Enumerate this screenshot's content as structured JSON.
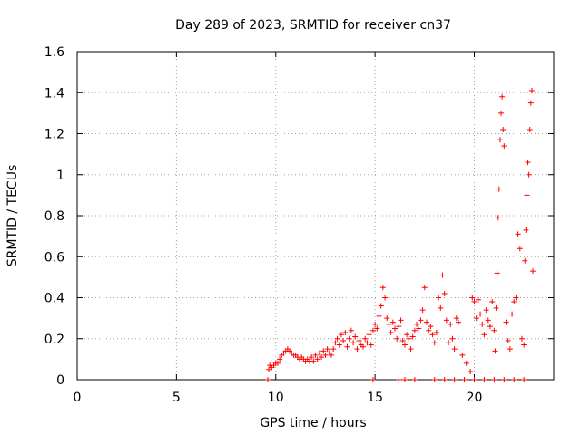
{
  "chart_data": {
    "type": "scatter",
    "title": "Day 289 of 2023, SRMTID for receiver cn37",
    "xlabel": "GPS time / hours",
    "ylabel": "SRMTID / TECUs",
    "xlim": [
      0,
      24
    ],
    "ylim": [
      0,
      1.6
    ],
    "grid": true,
    "marker": "+",
    "color": "#ff0000",
    "x_ticks": [
      0,
      5,
      10,
      15,
      20
    ],
    "x_tick_labels": [
      "0",
      "5",
      "10",
      "15",
      "20"
    ],
    "y_ticks": [
      0,
      0.2,
      0.4,
      0.6,
      0.8,
      1.0,
      1.2,
      1.4,
      1.6
    ],
    "y_tick_labels": [
      "0",
      "0.2",
      "0.4",
      "0.6",
      "0.8",
      "1",
      "1.2",
      "1.4",
      "1.6"
    ],
    "series": [
      {
        "name": "cn37",
        "points": [
          [
            9.6,
            0.0
          ],
          [
            9.65,
            0.05
          ],
          [
            9.7,
            0.07
          ],
          [
            9.8,
            0.06
          ],
          [
            9.9,
            0.07
          ],
          [
            10.0,
            0.08
          ],
          [
            10.1,
            0.08
          ],
          [
            10.2,
            0.1
          ],
          [
            10.3,
            0.12
          ],
          [
            10.4,
            0.13
          ],
          [
            10.5,
            0.14
          ],
          [
            10.6,
            0.15
          ],
          [
            10.7,
            0.14
          ],
          [
            10.8,
            0.13
          ],
          [
            10.9,
            0.12
          ],
          [
            11.0,
            0.12
          ],
          [
            11.1,
            0.11
          ],
          [
            11.2,
            0.1
          ],
          [
            11.3,
            0.11
          ],
          [
            11.4,
            0.1
          ],
          [
            11.5,
            0.09
          ],
          [
            11.6,
            0.1
          ],
          [
            11.7,
            0.09
          ],
          [
            11.8,
            0.11
          ],
          [
            11.9,
            0.09
          ],
          [
            12.0,
            0.12
          ],
          [
            12.1,
            0.1
          ],
          [
            12.2,
            0.13
          ],
          [
            12.3,
            0.11
          ],
          [
            12.4,
            0.14
          ],
          [
            12.5,
            0.12
          ],
          [
            12.6,
            0.15
          ],
          [
            12.7,
            0.13
          ],
          [
            12.8,
            0.12
          ],
          [
            12.9,
            0.15
          ],
          [
            13.0,
            0.18
          ],
          [
            13.1,
            0.2
          ],
          [
            13.2,
            0.17
          ],
          [
            13.3,
            0.22
          ],
          [
            13.4,
            0.19
          ],
          [
            13.5,
            0.23
          ],
          [
            13.6,
            0.16
          ],
          [
            13.7,
            0.2
          ],
          [
            13.8,
            0.24
          ],
          [
            13.9,
            0.18
          ],
          [
            14.0,
            0.21
          ],
          [
            14.1,
            0.15
          ],
          [
            14.2,
            0.19
          ],
          [
            14.3,
            0.17
          ],
          [
            14.4,
            0.16
          ],
          [
            14.5,
            0.2
          ],
          [
            14.6,
            0.18
          ],
          [
            14.7,
            0.22
          ],
          [
            14.8,
            0.17
          ],
          [
            14.9,
            0.24
          ],
          [
            15.0,
            0.27
          ],
          [
            15.1,
            0.25
          ],
          [
            15.2,
            0.31
          ],
          [
            15.3,
            0.36
          ],
          [
            15.4,
            0.45
          ],
          [
            15.5,
            0.4
          ],
          [
            15.6,
            0.3
          ],
          [
            15.7,
            0.27
          ],
          [
            15.8,
            0.23
          ],
          [
            15.9,
            0.28
          ],
          [
            16.0,
            0.25
          ],
          [
            16.1,
            0.2
          ],
          [
            16.2,
            0.26
          ],
          [
            16.3,
            0.29
          ],
          [
            16.4,
            0.19
          ],
          [
            16.5,
            0.17
          ],
          [
            16.6,
            0.22
          ],
          [
            16.7,
            0.2
          ],
          [
            16.8,
            0.15
          ],
          [
            16.9,
            0.21
          ],
          [
            17.0,
            0.24
          ],
          [
            17.1,
            0.27
          ],
          [
            17.2,
            0.25
          ],
          [
            17.3,
            0.29
          ],
          [
            17.4,
            0.34
          ],
          [
            17.5,
            0.45
          ],
          [
            17.6,
            0.28
          ],
          [
            17.7,
            0.24
          ],
          [
            17.8,
            0.26
          ],
          [
            17.9,
            0.22
          ],
          [
            18.0,
            0.18
          ],
          [
            18.1,
            0.23
          ],
          [
            18.2,
            0.4
          ],
          [
            18.3,
            0.35
          ],
          [
            18.4,
            0.51
          ],
          [
            18.5,
            0.42
          ],
          [
            18.6,
            0.29
          ],
          [
            18.7,
            0.18
          ],
          [
            18.8,
            0.27
          ],
          [
            18.9,
            0.2
          ],
          [
            19.0,
            0.15
          ],
          [
            19.1,
            0.3
          ],
          [
            19.2,
            0.28
          ],
          [
            19.4,
            0.12
          ],
          [
            19.6,
            0.08
          ],
          [
            19.8,
            0.04
          ],
          [
            19.9,
            0.4
          ],
          [
            20.0,
            0.38
          ],
          [
            20.1,
            0.3
          ],
          [
            20.2,
            0.39
          ],
          [
            20.3,
            0.32
          ],
          [
            20.4,
            0.27
          ],
          [
            20.5,
            0.22
          ],
          [
            20.6,
            0.34
          ],
          [
            20.7,
            0.29
          ],
          [
            20.8,
            0.26
          ],
          [
            20.9,
            0.38
          ],
          [
            21.0,
            0.24
          ],
          [
            21.05,
            0.14
          ],
          [
            21.1,
            0.35
          ],
          [
            21.15,
            0.52
          ],
          [
            21.2,
            0.79
          ],
          [
            21.25,
            0.93
          ],
          [
            21.3,
            1.17
          ],
          [
            21.35,
            1.3
          ],
          [
            21.4,
            1.38
          ],
          [
            21.45,
            1.22
          ],
          [
            21.5,
            1.14
          ],
          [
            21.6,
            0.28
          ],
          [
            21.7,
            0.19
          ],
          [
            21.8,
            0.15
          ],
          [
            21.9,
            0.32
          ],
          [
            22.0,
            0.38
          ],
          [
            22.1,
            0.4
          ],
          [
            22.2,
            0.71
          ],
          [
            22.3,
            0.64
          ],
          [
            22.4,
            0.2
          ],
          [
            22.5,
            0.17
          ],
          [
            22.55,
            0.58
          ],
          [
            22.6,
            0.73
          ],
          [
            22.65,
            0.9
          ],
          [
            22.7,
            1.06
          ],
          [
            22.75,
            1.0
          ],
          [
            22.8,
            1.22
          ],
          [
            22.85,
            1.35
          ],
          [
            22.9,
            1.41
          ],
          [
            22.95,
            0.53
          ],
          [
            16.2,
            0.0
          ],
          [
            16.5,
            0.0
          ],
          [
            17.0,
            0.0
          ],
          [
            18.0,
            0.0
          ],
          [
            18.5,
            0.0
          ],
          [
            19.0,
            0.0
          ],
          [
            19.5,
            0.0
          ],
          [
            20.0,
            0.0
          ],
          [
            20.5,
            0.0
          ],
          [
            21.0,
            0.0
          ],
          [
            21.5,
            0.0
          ],
          [
            22.0,
            0.0
          ],
          [
            22.5,
            0.0
          ],
          [
            14.9,
            0.0
          ]
        ]
      }
    ]
  }
}
